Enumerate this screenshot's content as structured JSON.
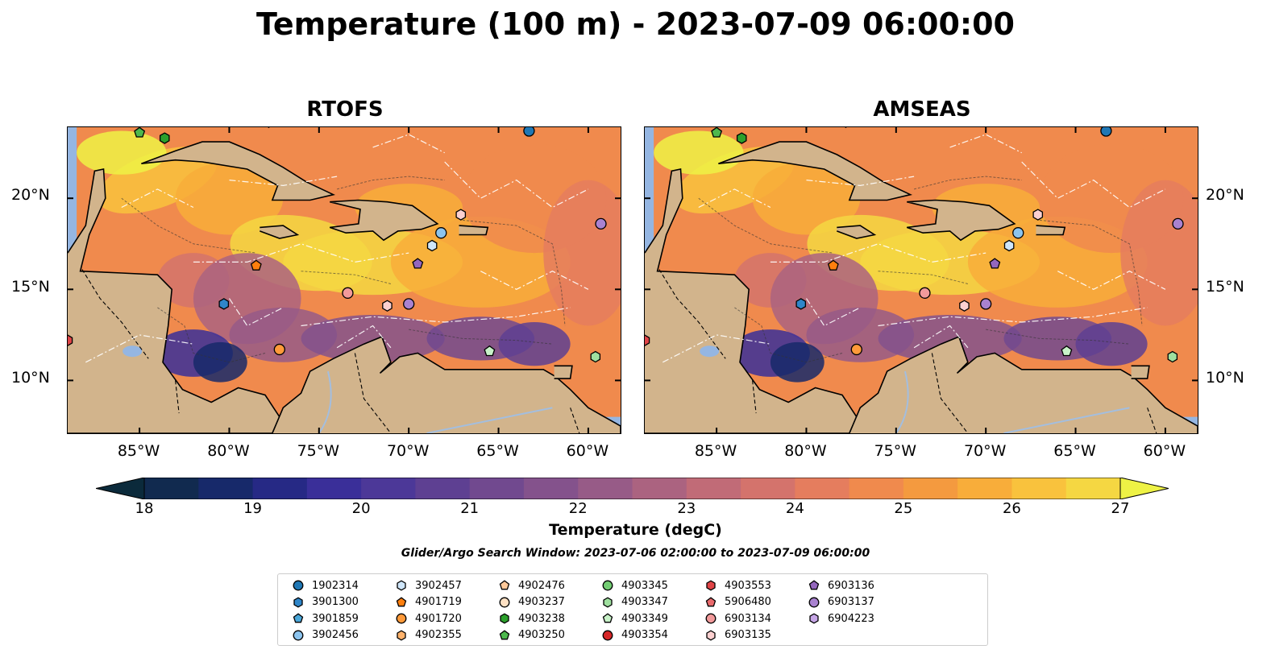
{
  "suptitle": "Temperature (100 m) - 2023-07-09 06:00:00",
  "panels": [
    {
      "title": "RTOFS"
    },
    {
      "title": "AMSEAS"
    }
  ],
  "lat_labels": [
    "20°N",
    "15°N",
    "10°N"
  ],
  "lon_labels": [
    "85°W",
    "80°W",
    "75°W",
    "70°W",
    "65°W",
    "60°W"
  ],
  "colorbar": {
    "label": "Temperature (degC)",
    "ticks": [
      "18",
      "19",
      "20",
      "21",
      "22",
      "23",
      "24",
      "25",
      "26",
      "27"
    ],
    "colors": [
      "#0b2a3b",
      "#112a4f",
      "#17296a",
      "#262985",
      "#3a2f99",
      "#4c3898",
      "#5e4092",
      "#71498f",
      "#84528c",
      "#975b87",
      "#ab6380",
      "#c16b77",
      "#d4736c",
      "#e57d5e",
      "#f08a4d",
      "#f49a3f",
      "#f8ad3a",
      "#f9c23d",
      "#f5d742",
      "#eef245"
    ]
  },
  "search_window": "Glider/Argo Search Window: 2023-07-06 02:00:00 to 2023-07-09 06:00:00",
  "legend": [
    {
      "id": "1902314",
      "color": "#1f77b4",
      "marker": "circle"
    },
    {
      "id": "3901300",
      "color": "#2f86c9",
      "marker": "hexagon"
    },
    {
      "id": "3901859",
      "color": "#4aa7d9",
      "marker": "pentagon"
    },
    {
      "id": "3902456",
      "color": "#8cc4ee",
      "marker": "circle"
    },
    {
      "id": "3902457",
      "color": "#cfe6fa",
      "marker": "hexagon"
    },
    {
      "id": "4901719",
      "color": "#ff7f0e",
      "marker": "pentagon"
    },
    {
      "id": "4901720",
      "color": "#ff9a3a",
      "marker": "circle"
    },
    {
      "id": "4902355",
      "color": "#ffb26b",
      "marker": "hexagon"
    },
    {
      "id": "4902476",
      "color": "#ffc99a",
      "marker": "pentagon"
    },
    {
      "id": "4903237",
      "color": "#ffe1c4",
      "marker": "circle"
    },
    {
      "id": "4903238",
      "color": "#2ca02c",
      "marker": "hexagon"
    },
    {
      "id": "4903250",
      "color": "#4db84d",
      "marker": "pentagon"
    },
    {
      "id": "4903345",
      "color": "#72cc72",
      "marker": "circle"
    },
    {
      "id": "4903347",
      "color": "#9fe09f",
      "marker": "hexagon"
    },
    {
      "id": "4903349",
      "color": "#c8f2c8",
      "marker": "pentagon"
    },
    {
      "id": "4903354",
      "color": "#d62728",
      "marker": "circle"
    },
    {
      "id": "4903553",
      "color": "#e04447",
      "marker": "hexagon"
    },
    {
      "id": "5906480",
      "color": "#e96a6c",
      "marker": "pentagon"
    },
    {
      "id": "6903134",
      "color": "#f29a9b",
      "marker": "circle"
    },
    {
      "id": "6903135",
      "color": "#fcd0d0",
      "marker": "hexagon"
    },
    {
      "id": "6903136",
      "color": "#9467bd",
      "marker": "pentagon"
    },
    {
      "id": "6903137",
      "color": "#a982d0",
      "marker": "circle"
    },
    {
      "id": "6904223",
      "color": "#c6a6e6",
      "marker": "hexagon"
    }
  ],
  "platform_positions": [
    {
      "id": "4903250",
      "lon": -85.0,
      "lat": 23.6
    },
    {
      "id": "4903238",
      "lon": -83.6,
      "lat": 23.3
    },
    {
      "id": "1902314",
      "lon": -63.3,
      "lat": 23.7
    },
    {
      "id": "6903135",
      "lon": -67.1,
      "lat": 19.1
    },
    {
      "id": "6903137",
      "lon": -59.3,
      "lat": 18.6
    },
    {
      "id": "3902456",
      "lon": -68.2,
      "lat": 18.1
    },
    {
      "id": "3902457",
      "lon": -68.7,
      "lat": 17.4
    },
    {
      "id": "4901719",
      "lon": -78.5,
      "lat": 16.3
    },
    {
      "id": "6903136",
      "lon": -69.5,
      "lat": 16.4
    },
    {
      "id": "6903134",
      "lon": -73.4,
      "lat": 14.8
    },
    {
      "id": "3901300",
      "lon": -80.3,
      "lat": 14.2
    },
    {
      "id": "6903135",
      "lon": -71.2,
      "lat": 14.1
    },
    {
      "id": "6903137",
      "lon": -70.0,
      "lat": 14.2
    },
    {
      "id": "4901720",
      "lon": -77.2,
      "lat": 11.7
    },
    {
      "id": "4903349",
      "lon": -65.5,
      "lat": 11.6
    },
    {
      "id": "4903347",
      "lon": -59.6,
      "lat": 11.3
    },
    {
      "id": "4903553",
      "lon": -89.0,
      "lat": 12.2
    }
  ]
}
